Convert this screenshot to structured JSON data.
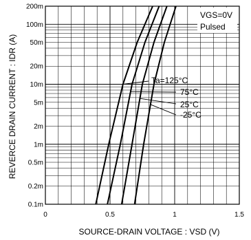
{
  "chart_data": {
    "type": "line",
    "title": "",
    "xlabel": "SOURCE-DRAIN  VOLTAGE : VSD (V)",
    "ylabel": "REVERCE  DRAIN  CURRENT : IDR (A)",
    "x_scale": "linear",
    "y_scale": "log",
    "xlim": [
      0,
      1.5
    ],
    "ylim": [
      0.0001,
      0.2
    ],
    "grid": true,
    "x_ticks": [
      {
        "v": 0,
        "label": "0"
      },
      {
        "v": 0.5,
        "label": "0.5"
      },
      {
        "v": 1,
        "label": "1"
      },
      {
        "v": 1.5,
        "label": "1.5"
      }
    ],
    "y_ticks": [
      {
        "v": 0.2,
        "label": "200m"
      },
      {
        "v": 0.1,
        "label": "100m"
      },
      {
        "v": 0.05,
        "label": "50m"
      },
      {
        "v": 0.02,
        "label": "20m"
      },
      {
        "v": 0.01,
        "label": "10m"
      },
      {
        "v": 0.005,
        "label": "5m"
      },
      {
        "v": 0.002,
        "label": "2m"
      },
      {
        "v": 0.001,
        "label": "1m"
      },
      {
        "v": 0.0005,
        "label": "0.5m"
      },
      {
        "v": 0.0002,
        "label": "0.2m"
      },
      {
        "v": 0.0001,
        "label": "0.1m"
      }
    ],
    "annotation": [
      "VGS=0V",
      "Pulsed"
    ],
    "series": [
      {
        "name": "Ta=125°C",
        "points": [
          [
            0.39,
            0.0001
          ],
          [
            0.49,
            0.001
          ],
          [
            0.6,
            0.01
          ],
          [
            0.71,
            0.05
          ],
          [
            0.83,
            0.2
          ]
        ]
      },
      {
        "name": "75°C",
        "points": [
          [
            0.48,
            0.0001
          ],
          [
            0.58,
            0.001
          ],
          [
            0.67,
            0.01
          ],
          [
            0.77,
            0.05
          ],
          [
            0.88,
            0.2
          ]
        ]
      },
      {
        "name": "25°C",
        "points": [
          [
            0.59,
            0.0001
          ],
          [
            0.67,
            0.001
          ],
          [
            0.75,
            0.01
          ],
          [
            0.84,
            0.05
          ],
          [
            0.94,
            0.2
          ]
        ]
      },
      {
        "name": "-25°C",
        "points": [
          [
            0.69,
            0.0001
          ],
          [
            0.76,
            0.001
          ],
          [
            0.84,
            0.01
          ],
          [
            0.92,
            0.05
          ],
          [
            1.01,
            0.2
          ]
        ]
      }
    ]
  }
}
